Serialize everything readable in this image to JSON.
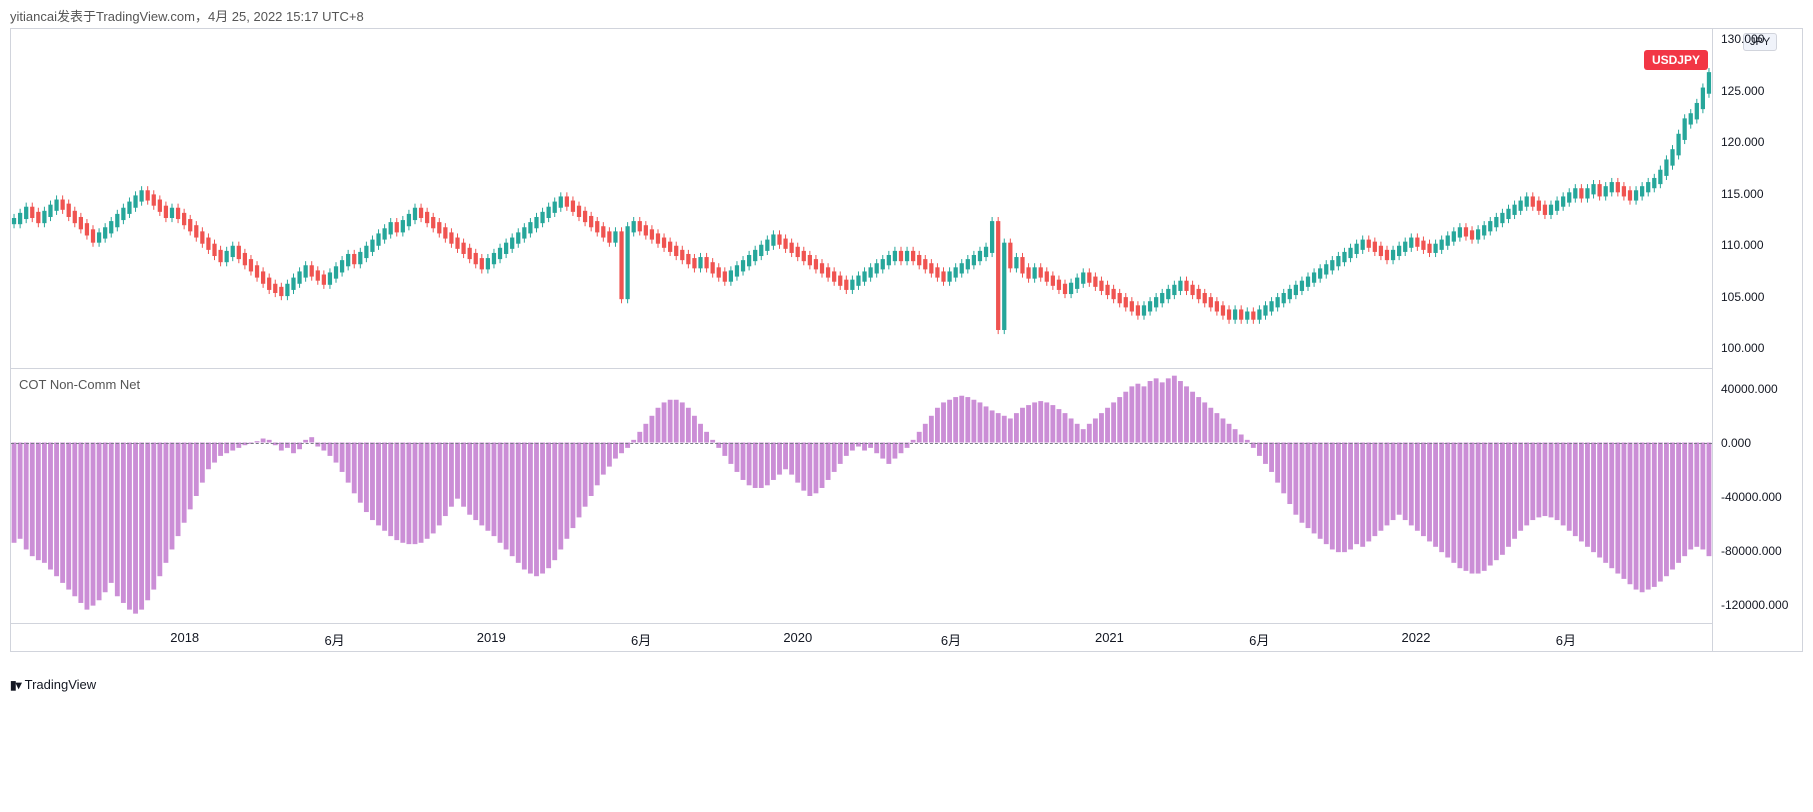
{
  "header": {
    "attribution": "yitiancai发表于TradingView.com，4月 25, 2022 15:17 UTC+8"
  },
  "footer": {
    "brand": "TradingView",
    "logo_prefix": "1▾"
  },
  "price_chart": {
    "type": "candlestick",
    "symbol_badge": "USDJPY",
    "currency_badge": "JPY",
    "badge_bg": "#f23645",
    "badge_fg": "#ffffff",
    "up_color": "#26a69a",
    "down_color": "#ef5350",
    "background_color": "#ffffff",
    "border_color": "#d1d4dc",
    "ylim": [
      98,
      131
    ],
    "yticks": [
      100,
      105,
      110,
      115,
      120,
      125,
      130
    ],
    "ytick_labels": [
      "100.000",
      "105.000",
      "110.000",
      "115.000",
      "120.000",
      "125.000",
      "130.000"
    ],
    "last_value": 128,
    "series_len": 280,
    "values": [
      112.3,
      112.8,
      113.4,
      112.9,
      112.4,
      113.0,
      113.6,
      114.1,
      113.7,
      113.0,
      112.4,
      111.8,
      111.2,
      110.5,
      110.9,
      111.4,
      112.0,
      112.7,
      113.3,
      113.9,
      114.5,
      115.0,
      114.6,
      114.1,
      113.5,
      112.9,
      113.3,
      112.8,
      112.2,
      111.6,
      111.0,
      110.4,
      109.8,
      109.2,
      108.6,
      109.1,
      109.6,
      108.9,
      108.3,
      107.7,
      107.1,
      106.5,
      105.9,
      105.6,
      105.3,
      105.9,
      106.5,
      107.1,
      107.7,
      107.2,
      106.8,
      106.4,
      107.0,
      107.6,
      108.2,
      108.8,
      108.4,
      109.0,
      109.6,
      110.2,
      110.8,
      111.3,
      111.9,
      111.5,
      112.1,
      112.7,
      113.3,
      112.9,
      112.4,
      111.9,
      111.4,
      110.9,
      110.4,
      109.9,
      109.4,
      108.9,
      108.4,
      107.9,
      108.4,
      108.9,
      109.4,
      109.9,
      110.4,
      110.9,
      111.4,
      111.9,
      112.4,
      112.9,
      113.4,
      113.9,
      114.4,
      114.0,
      113.5,
      113.0,
      112.5,
      112.0,
      111.5,
      111.0,
      110.5,
      111.0,
      105.0,
      111.5,
      112.0,
      111.6,
      111.2,
      110.8,
      110.4,
      110.0,
      109.6,
      109.2,
      108.8,
      108.4,
      108.0,
      108.5,
      108.0,
      107.5,
      107.1,
      106.7,
      107.2,
      107.7,
      108.2,
      108.7,
      109.2,
      109.7,
      110.2,
      110.7,
      110.3,
      109.9,
      109.5,
      109.1,
      108.7,
      108.3,
      107.9,
      107.5,
      107.1,
      106.7,
      106.3,
      105.9,
      106.3,
      106.7,
      107.1,
      107.5,
      107.9,
      108.3,
      108.7,
      109.1,
      108.7,
      109.1,
      108.7,
      108.3,
      107.9,
      107.5,
      107.1,
      106.7,
      107.1,
      107.5,
      107.9,
      108.3,
      108.7,
      109.1,
      109.5,
      112.0,
      102.0,
      109.9,
      108.0,
      108.5,
      107.5,
      107.0,
      107.5,
      107.1,
      106.7,
      106.3,
      105.9,
      105.5,
      106.0,
      106.5,
      107.0,
      106.6,
      106.2,
      105.8,
      105.4,
      105.0,
      104.6,
      104.2,
      103.8,
      103.4,
      103.8,
      104.2,
      104.6,
      105.0,
      105.4,
      105.8,
      106.2,
      105.8,
      105.4,
      105.0,
      104.6,
      104.2,
      103.8,
      103.4,
      103.0,
      103.4,
      103.0,
      103.2,
      103.0,
      103.4,
      103.8,
      104.2,
      104.6,
      105.0,
      105.4,
      105.8,
      106.2,
      106.6,
      107.0,
      107.4,
      107.8,
      108.2,
      108.6,
      109.0,
      109.4,
      109.8,
      110.2,
      110.0,
      109.6,
      109.2,
      108.8,
      109.2,
      109.6,
      110.0,
      110.4,
      110.1,
      109.8,
      109.5,
      109.8,
      110.2,
      110.6,
      111.0,
      111.4,
      111.1,
      110.8,
      111.2,
      111.6,
      112.0,
      112.4,
      112.8,
      113.2,
      113.6,
      114.0,
      114.4,
      114.0,
      113.6,
      113.2,
      113.6,
      114.0,
      114.4,
      114.8,
      115.2,
      114.8,
      115.2,
      115.6,
      115.0,
      115.4,
      115.8,
      115.4,
      115.0,
      114.6,
      115.0,
      115.4,
      115.8,
      116.2,
      117.0,
      118.0,
      119.0,
      120.5,
      122.0,
      122.5,
      123.5,
      125.0,
      126.5,
      128.0
    ]
  },
  "cot_chart": {
    "type": "bar",
    "title": "COT Non-Comm Net",
    "bar_color": "#ba68c8",
    "bar_opacity": 0.75,
    "zero_line_color": "#787b86",
    "ylim": [
      -135000,
      55000
    ],
    "yticks": [
      -120000,
      -80000,
      -40000,
      0,
      40000
    ],
    "ytick_labels": [
      "-120000.000",
      "-80000.000",
      "-40000.000",
      "0.000",
      "40000.000"
    ],
    "series_len": 280,
    "values": [
      -75000,
      -72000,
      -80000,
      -85000,
      -88000,
      -90000,
      -95000,
      -100000,
      -105000,
      -110000,
      -115000,
      -120000,
      -125000,
      -122000,
      -118000,
      -112000,
      -105000,
      -115000,
      -120000,
      -125000,
      -128000,
      -125000,
      -118000,
      -110000,
      -100000,
      -90000,
      -80000,
      -70000,
      -60000,
      -50000,
      -40000,
      -30000,
      -20000,
      -15000,
      -10000,
      -8000,
      -6000,
      -4000,
      -2000,
      -1000,
      1000,
      3000,
      2000,
      -2000,
      -6000,
      -4000,
      -8000,
      -5000,
      2000,
      4000,
      -3000,
      -6000,
      -10000,
      -15000,
      -22000,
      -30000,
      -38000,
      -45000,
      -52000,
      -58000,
      -62000,
      -66000,
      -70000,
      -73000,
      -75000,
      -76000,
      -76000,
      -75000,
      -72000,
      -68000,
      -62000,
      -55000,
      -48000,
      -42000,
      -48000,
      -54000,
      -58000,
      -62000,
      -66000,
      -70000,
      -75000,
      -80000,
      -85000,
      -90000,
      -95000,
      -98000,
      -100000,
      -98000,
      -94000,
      -88000,
      -80000,
      -72000,
      -64000,
      -56000,
      -48000,
      -40000,
      -32000,
      -24000,
      -18000,
      -12000,
      -8000,
      -4000,
      2000,
      8000,
      14000,
      20000,
      26000,
      30000,
      32000,
      32000,
      30000,
      26000,
      20000,
      14000,
      8000,
      2000,
      -4000,
      -10000,
      -16000,
      -22000,
      -28000,
      -32000,
      -34000,
      -34000,
      -32000,
      -28000,
      -24000,
      -20000,
      -24000,
      -30000,
      -36000,
      -40000,
      -38000,
      -34000,
      -28000,
      -22000,
      -16000,
      -10000,
      -6000,
      -3000,
      -6000,
      -4000,
      -8000,
      -12000,
      -16000,
      -12000,
      -8000,
      -4000,
      2000,
      8000,
      14000,
      20000,
      26000,
      30000,
      32000,
      34000,
      35000,
      34000,
      32000,
      30000,
      27000,
      24000,
      22000,
      20000,
      18000,
      22000,
      26000,
      28000,
      30000,
      31000,
      30000,
      28000,
      25000,
      22000,
      18000,
      14000,
      10000,
      14000,
      18000,
      22000,
      26000,
      30000,
      34000,
      38000,
      42000,
      44000,
      42000,
      46000,
      48000,
      45000,
      48000,
      50000,
      46000,
      42000,
      38000,
      34000,
      30000,
      26000,
      22000,
      18000,
      14000,
      10000,
      6000,
      2000,
      -4000,
      -10000,
      -16000,
      -22000,
      -30000,
      -38000,
      -46000,
      -54000,
      -60000,
      -64000,
      -68000,
      -72000,
      -76000,
      -80000,
      -82000,
      -82000,
      -80000,
      -76000,
      -78000,
      -74000,
      -70000,
      -66000,
      -62000,
      -58000,
      -54000,
      -58000,
      -62000,
      -66000,
      -70000,
      -74000,
      -78000,
      -82000,
      -86000,
      -90000,
      -94000,
      -96000,
      -98000,
      -98000,
      -96000,
      -92000,
      -88000,
      -84000,
      -78000,
      -72000,
      -66000,
      -62000,
      -58000,
      -56000,
      -55000,
      -56000,
      -58000,
      -62000,
      -66000,
      -70000,
      -74000,
      -78000,
      -82000,
      -86000,
      -90000,
      -94000,
      -98000,
      -102000,
      -106000,
      -110000,
      -112000,
      -110000,
      -108000,
      -104000,
      -100000,
      -95000,
      -90000,
      -85000,
      -80000,
      -78000,
      -80000,
      -85000
    ]
  },
  "time_axis": {
    "labels": [
      {
        "pos": 0.102,
        "text": "2018",
        "minor": false
      },
      {
        "pos": 0.19,
        "text": "6月",
        "minor": true
      },
      {
        "pos": 0.282,
        "text": "2019",
        "minor": false
      },
      {
        "pos": 0.37,
        "text": "6月",
        "minor": true
      },
      {
        "pos": 0.462,
        "text": "2020",
        "minor": false
      },
      {
        "pos": 0.552,
        "text": "6月",
        "minor": true
      },
      {
        "pos": 0.645,
        "text": "2021",
        "minor": false
      },
      {
        "pos": 0.733,
        "text": "6月",
        "minor": true
      },
      {
        "pos": 0.825,
        "text": "2022",
        "minor": false
      },
      {
        "pos": 0.913,
        "text": "6月",
        "minor": true
      }
    ]
  }
}
